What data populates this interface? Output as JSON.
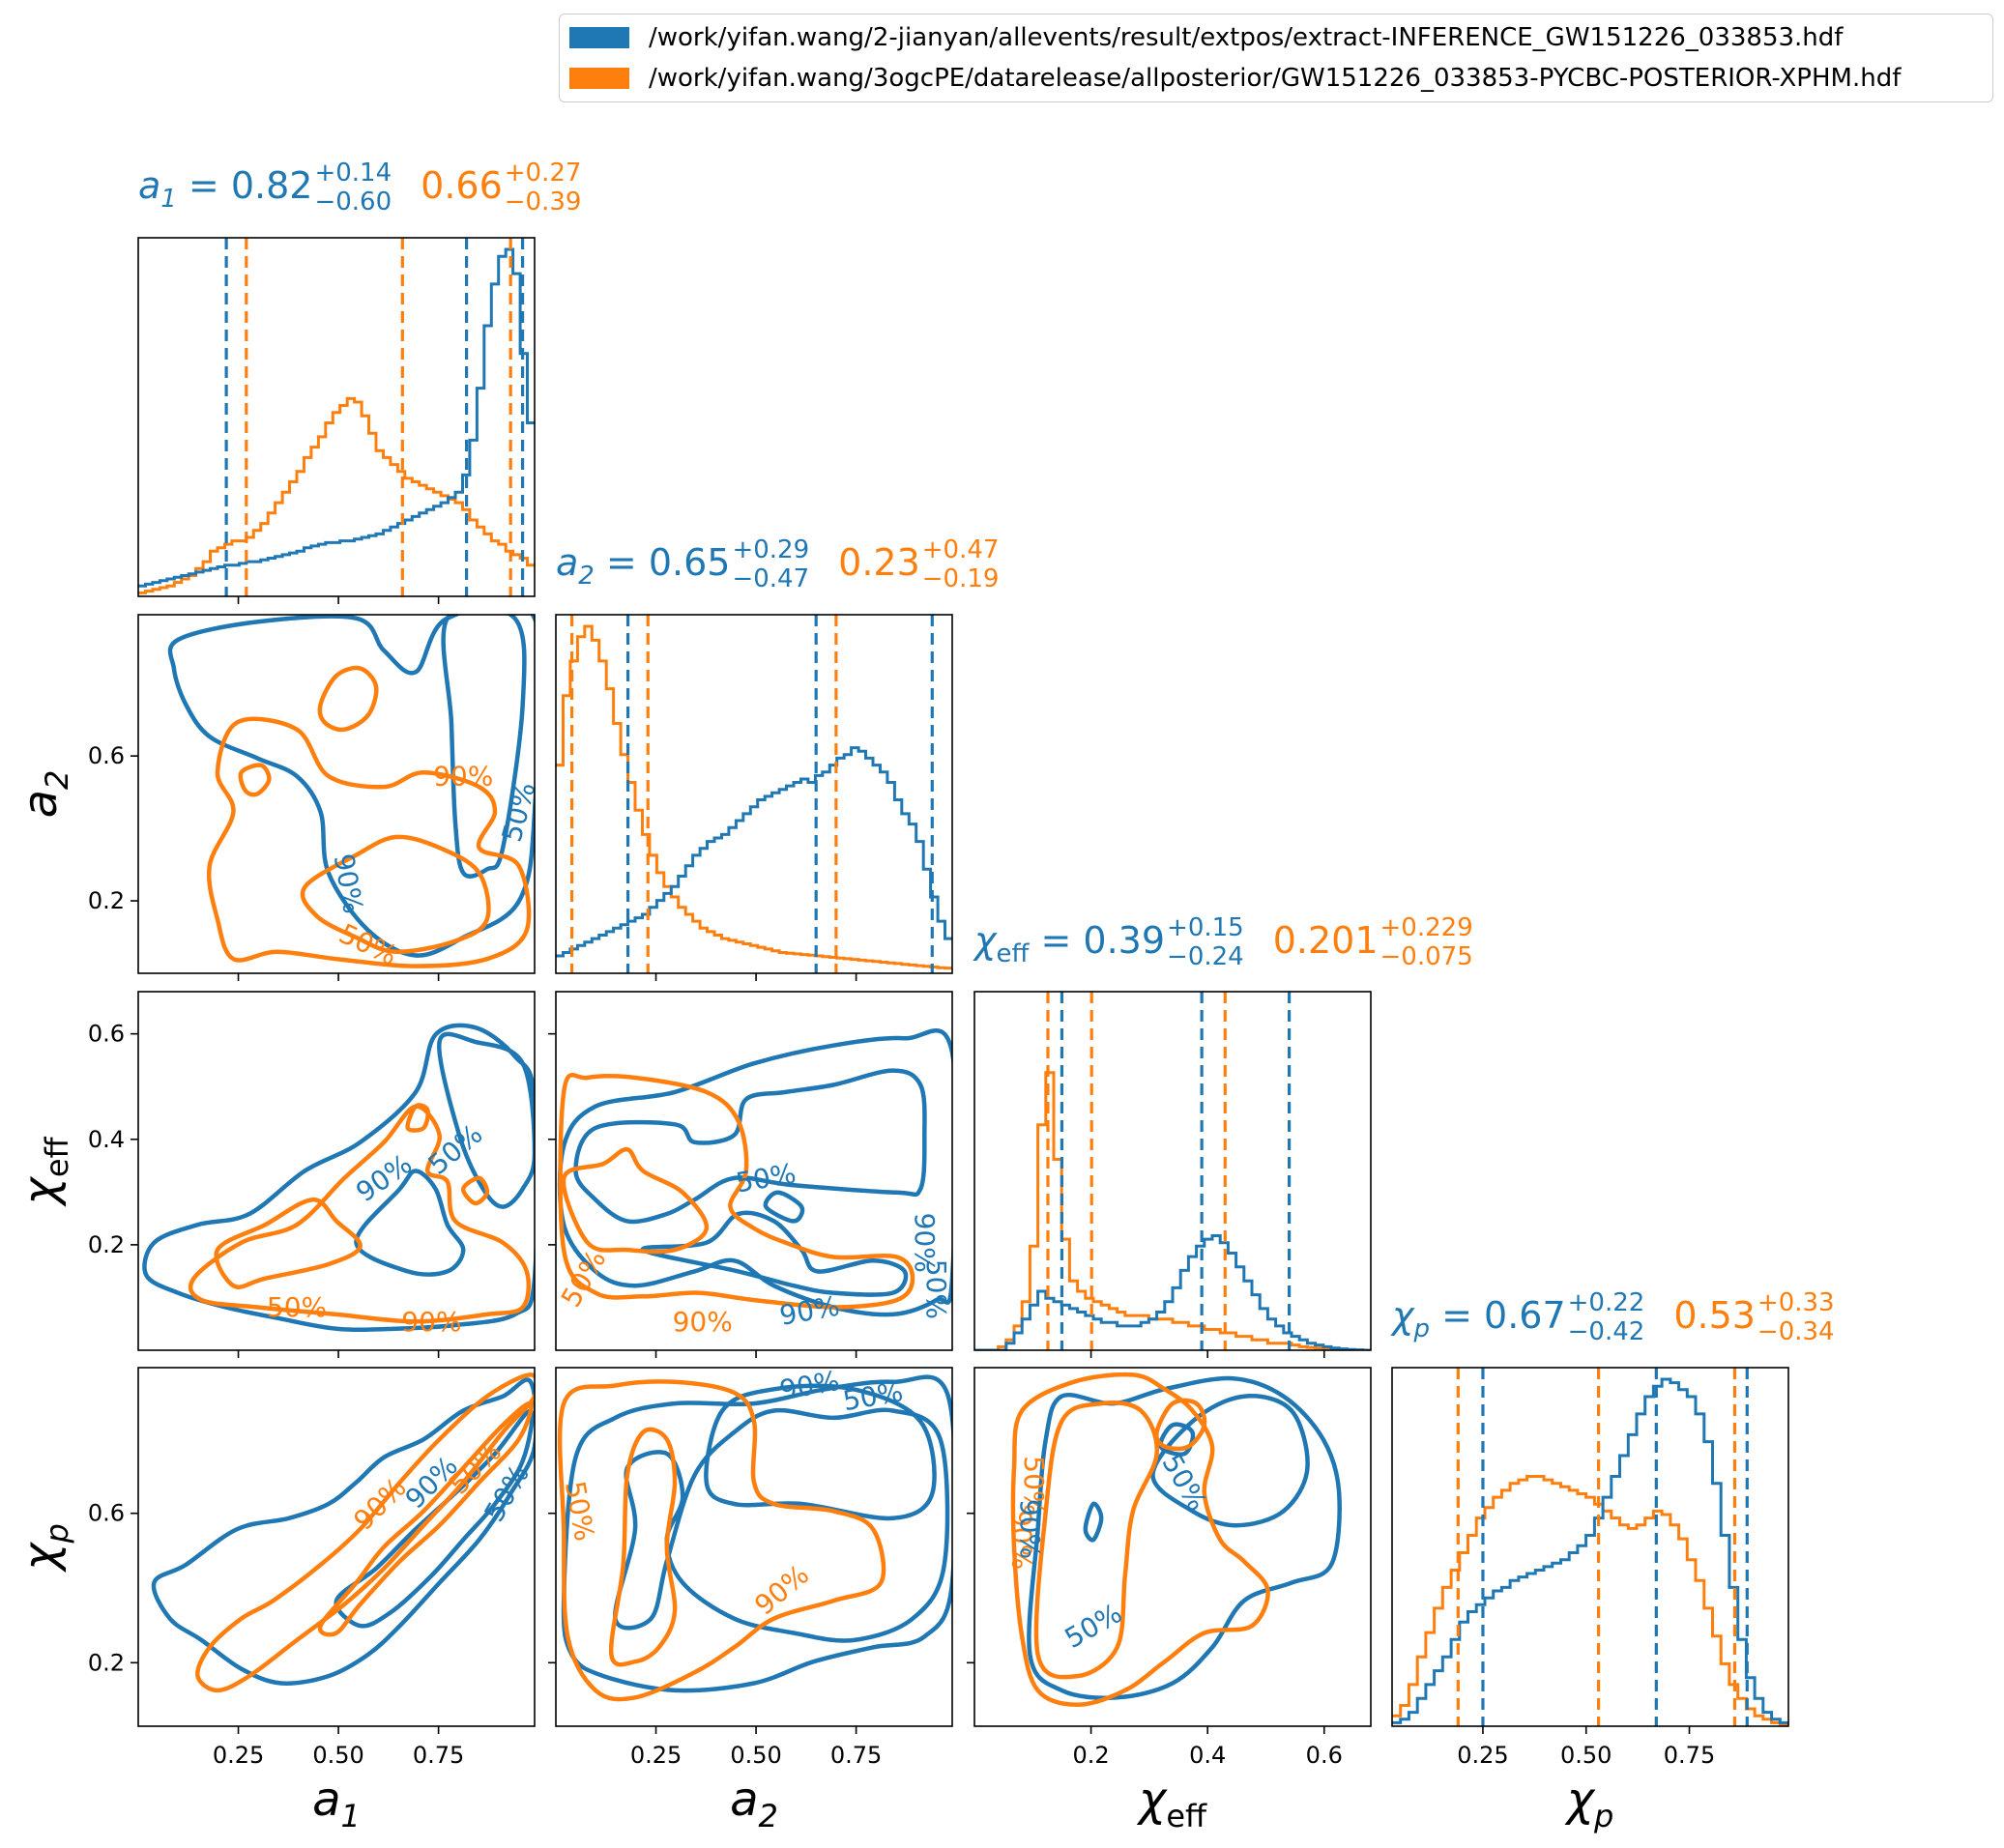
{
  "legend": {
    "entries": [
      {
        "label": "/work/yifan.wang/2-jianyan/allevents/result/extpos/extract-INFERENCE_GW151226_033853.hdf",
        "color": "#1f77b4"
      },
      {
        "label": "/work/yifan.wang/3ogcPE/datarelease/allposterior/GW151226_033853-PYCBC-POSTERIOR-XPHM.hdf",
        "color": "#ff7f0e"
      }
    ]
  },
  "colors": {
    "blue": "#1f77b4",
    "orange": "#ff7f0e"
  },
  "chart_data": {
    "type": "corner",
    "parameters": [
      {
        "key": "a1",
        "label": "a_1",
        "range": [
          0.0,
          0.99
        ]
      },
      {
        "key": "a2",
        "label": "a_2",
        "range": [
          0.0,
          0.99
        ]
      },
      {
        "key": "chieff",
        "label": "χ_eff",
        "range": [
          0.0,
          0.68
        ]
      },
      {
        "key": "chip",
        "label": "χ_p",
        "range": [
          0.03,
          0.99
        ]
      }
    ],
    "ticks": {
      "a1": [
        "0.25",
        "0.50",
        "0.75"
      ],
      "a2": [
        "0.25",
        "0.50",
        "0.75"
      ],
      "a2_y": [
        "0.2",
        "0.6"
      ],
      "chieff": [
        "0.2",
        "0.4",
        "0.6"
      ],
      "chip": [
        "0.2",
        "0.6"
      ],
      "chip_x": [
        "0.25",
        "0.50",
        "0.75"
      ]
    },
    "titles": [
      {
        "param": "a1",
        "name": "a",
        "sub": "1",
        "blue": {
          "median": "0.82",
          "plus": "+0.14",
          "minus": "−0.60"
        },
        "orange": {
          "median": "0.66",
          "plus": "+0.27",
          "minus": "−0.39"
        }
      },
      {
        "param": "a2",
        "name": "a",
        "sub": "2",
        "blue": {
          "median": "0.65",
          "plus": "+0.29",
          "minus": "−0.47"
        },
        "orange": {
          "median": "0.23",
          "plus": "+0.47",
          "minus": "−0.19"
        }
      },
      {
        "param": "chieff",
        "name": "χ",
        "sub": "eff",
        "blue": {
          "median": "0.39",
          "plus": "+0.15",
          "minus": "−0.24"
        },
        "orange": {
          "median": "0.201",
          "plus": "+0.229",
          "minus": "−0.075"
        }
      },
      {
        "param": "chip",
        "name": "χ",
        "sub": "p",
        "blue": {
          "median": "0.67",
          "plus": "+0.22",
          "minus": "−0.42"
        },
        "orange": {
          "median": "0.53",
          "plus": "+0.33",
          "minus": "−0.34"
        }
      }
    ],
    "quantiles": {
      "a1": {
        "blue": [
          0.22,
          0.82,
          0.96
        ],
        "orange": [
          0.27,
          0.66,
          0.93
        ]
      },
      "a2": {
        "blue": [
          0.18,
          0.65,
          0.94
        ],
        "orange": [
          0.04,
          0.23,
          0.7
        ]
      },
      "chieff": {
        "blue": [
          0.15,
          0.39,
          0.54
        ],
        "orange": [
          0.126,
          0.201,
          0.43
        ]
      },
      "chip": {
        "blue": [
          0.25,
          0.67,
          0.89
        ],
        "orange": [
          0.19,
          0.53,
          0.86
        ]
      }
    },
    "histograms": {
      "a1": {
        "bins": [
          0.0,
          0.99
        ],
        "blue": [
          0.03,
          0.035,
          0.04,
          0.045,
          0.05,
          0.055,
          0.06,
          0.065,
          0.07,
          0.075,
          0.08,
          0.085,
          0.09,
          0.09,
          0.095,
          0.1,
          0.1,
          0.105,
          0.11,
          0.115,
          0.12,
          0.125,
          0.13,
          0.14,
          0.145,
          0.15,
          0.155,
          0.155,
          0.16,
          0.16,
          0.165,
          0.17,
          0.175,
          0.18,
          0.19,
          0.2,
          0.21,
          0.22,
          0.23,
          0.24,
          0.25,
          0.26,
          0.27,
          0.285,
          0.3,
          0.35,
          0.45,
          0.6,
          0.78,
          0.9,
          0.98,
          1.0,
          0.93,
          0.7,
          0.5
        ],
        "orange": [
          0.01,
          0.015,
          0.02,
          0.025,
          0.03,
          0.04,
          0.05,
          0.06,
          0.08,
          0.1,
          0.13,
          0.14,
          0.15,
          0.16,
          0.16,
          0.17,
          0.19,
          0.21,
          0.24,
          0.27,
          0.3,
          0.33,
          0.36,
          0.4,
          0.43,
          0.46,
          0.5,
          0.53,
          0.55,
          0.57,
          0.56,
          0.52,
          0.47,
          0.42,
          0.4,
          0.38,
          0.36,
          0.34,
          0.33,
          0.32,
          0.31,
          0.3,
          0.29,
          0.28,
          0.27,
          0.25,
          0.22,
          0.2,
          0.18,
          0.16,
          0.15,
          0.13,
          0.12,
          0.11,
          0.09
        ]
      },
      "a2": {
        "bins": [
          0.0,
          0.99
        ],
        "blue": [
          0.05,
          0.06,
          0.07,
          0.08,
          0.09,
          0.1,
          0.11,
          0.12,
          0.13,
          0.14,
          0.15,
          0.16,
          0.17,
          0.19,
          0.21,
          0.23,
          0.25,
          0.28,
          0.31,
          0.34,
          0.36,
          0.38,
          0.39,
          0.4,
          0.42,
          0.44,
          0.46,
          0.48,
          0.5,
          0.51,
          0.52,
          0.53,
          0.54,
          0.55,
          0.56,
          0.55,
          0.57,
          0.58,
          0.6,
          0.62,
          0.63,
          0.65,
          0.64,
          0.62,
          0.6,
          0.58,
          0.55,
          0.5,
          0.46,
          0.43,
          0.38,
          0.3,
          0.22,
          0.15,
          0.1
        ],
        "orange": [
          0.6,
          0.8,
          0.9,
          0.97,
          1.0,
          0.96,
          0.9,
          0.82,
          0.72,
          0.63,
          0.55,
          0.47,
          0.4,
          0.34,
          0.29,
          0.25,
          0.22,
          0.19,
          0.17,
          0.15,
          0.13,
          0.12,
          0.11,
          0.1,
          0.095,
          0.09,
          0.085,
          0.08,
          0.075,
          0.07,
          0.065,
          0.06,
          0.058,
          0.056,
          0.054,
          0.052,
          0.05,
          0.048,
          0.046,
          0.044,
          0.042,
          0.04,
          0.038,
          0.036,
          0.034,
          0.032,
          0.03,
          0.028,
          0.026,
          0.024,
          0.022,
          0.02,
          0.018,
          0.016,
          0.015
        ]
      },
      "chieff": {
        "bins": [
          0.0,
          0.68
        ],
        "blue": [
          0.0,
          0.0,
          0.0,
          0.0,
          0.02,
          0.05,
          0.09,
          0.13,
          0.17,
          0.15,
          0.14,
          0.13,
          0.12,
          0.11,
          0.1,
          0.09,
          0.08,
          0.08,
          0.07,
          0.07,
          0.07,
          0.08,
          0.09,
          0.11,
          0.14,
          0.18,
          0.23,
          0.27,
          0.3,
          0.32,
          0.33,
          0.31,
          0.28,
          0.24,
          0.2,
          0.16,
          0.12,
          0.09,
          0.07,
          0.05,
          0.04,
          0.03,
          0.02,
          0.015,
          0.01,
          0.006,
          0.004,
          0.002,
          0.001,
          0.0
        ],
        "orange": [
          0.0,
          0.0,
          0.0,
          0.01,
          0.03,
          0.07,
          0.14,
          0.3,
          0.65,
          0.8,
          0.55,
          0.32,
          0.2,
          0.17,
          0.15,
          0.14,
          0.13,
          0.12,
          0.11,
          0.1,
          0.1,
          0.1,
          0.09,
          0.09,
          0.09,
          0.08,
          0.08,
          0.07,
          0.07,
          0.06,
          0.06,
          0.05,
          0.05,
          0.04,
          0.04,
          0.03,
          0.03,
          0.02,
          0.02,
          0.02,
          0.015,
          0.01,
          0.008,
          0.006,
          0.004,
          0.002,
          0.001,
          0.0,
          0.0,
          0.0
        ]
      },
      "chip": {
        "bins": [
          0.03,
          0.99
        ],
        "blue": [
          0.01,
          0.02,
          0.04,
          0.08,
          0.12,
          0.16,
          0.2,
          0.25,
          0.3,
          0.33,
          0.35,
          0.37,
          0.39,
          0.4,
          0.42,
          0.43,
          0.44,
          0.45,
          0.46,
          0.47,
          0.48,
          0.5,
          0.52,
          0.55,
          0.6,
          0.66,
          0.72,
          0.78,
          0.84,
          0.9,
          0.95,
          0.98,
          1.0,
          0.99,
          0.97,
          0.95,
          0.9,
          0.82,
          0.7,
          0.55,
          0.4,
          0.25,
          0.14,
          0.08,
          0.04,
          0.02,
          0.01
        ],
        "orange": [
          0.03,
          0.06,
          0.12,
          0.2,
          0.27,
          0.34,
          0.4,
          0.45,
          0.5,
          0.55,
          0.6,
          0.63,
          0.66,
          0.68,
          0.7,
          0.71,
          0.72,
          0.72,
          0.71,
          0.7,
          0.69,
          0.68,
          0.67,
          0.66,
          0.64,
          0.62,
          0.6,
          0.58,
          0.57,
          0.58,
          0.6,
          0.62,
          0.61,
          0.58,
          0.54,
          0.48,
          0.42,
          0.34,
          0.26,
          0.18,
          0.12,
          0.08,
          0.05,
          0.03,
          0.02,
          0.01,
          0.005
        ]
      }
    },
    "contour_labels": [
      {
        "panel": "a2-a1",
        "color": "orange",
        "text": "90%",
        "at": [
          0.82,
          0.55
        ]
      },
      {
        "panel": "a2-a1",
        "color": "blue",
        "text": "50%",
        "at": [
          0.96,
          0.45
        ],
        "rot": -75
      },
      {
        "panel": "a2-a1",
        "color": "blue",
        "text": "90%",
        "at": [
          0.53,
          0.25
        ],
        "rot": 80
      },
      {
        "panel": "a2-a1",
        "color": "orange",
        "text": "50%",
        "at": [
          0.58,
          0.08
        ],
        "rot": 25
      },
      {
        "panel": "chieff-a1",
        "color": "blue",
        "text": "90%",
        "at": [
          0.62,
          0.48
        ],
        "rot": -35
      },
      {
        "panel": "chieff-a1",
        "color": "blue",
        "text": "50%",
        "at": [
          0.8,
          0.56
        ],
        "rot": -40
      },
      {
        "panel": "chieff-a1",
        "color": "orange",
        "text": "50%",
        "at": [
          0.4,
          0.12
        ]
      },
      {
        "panel": "chieff-a1",
        "color": "orange",
        "text": "90%",
        "at": [
          0.74,
          0.08
        ]
      },
      {
        "panel": "chieff-a2",
        "color": "blue",
        "text": "50%",
        "at": [
          0.53,
          0.48
        ],
        "rot": -10
      },
      {
        "panel": "chieff-a2",
        "color": "blue",
        "text": "90%",
        "at": [
          0.93,
          0.3
        ],
        "rot": 90
      },
      {
        "panel": "chieff-a2",
        "color": "blue",
        "text": "50%",
        "at": [
          0.96,
          0.17
        ],
        "rot": 90
      },
      {
        "panel": "chieff-a2",
        "color": "orange",
        "text": "50%",
        "at": [
          0.07,
          0.2
        ],
        "rot": -60
      },
      {
        "panel": "chieff-a2",
        "color": "orange",
        "text": "90%",
        "at": [
          0.37,
          0.08
        ]
      },
      {
        "panel": "chieff-a2",
        "color": "blue",
        "text": "90%",
        "at": [
          0.64,
          0.11
        ],
        "rot": -10
      },
      {
        "panel": "chip-a1",
        "color": "orange",
        "text": "90%",
        "at": [
          0.61,
          0.62
        ],
        "rot": -45
      },
      {
        "panel": "chip-a1",
        "color": "blue",
        "text": "90%",
        "at": [
          0.74,
          0.68
        ],
        "rot": -45
      },
      {
        "panel": "chip-a1",
        "color": "orange",
        "text": "50%",
        "at": [
          0.85,
          0.72
        ],
        "rot": -45
      },
      {
        "panel": "chip-a1",
        "color": "blue",
        "text": "50%",
        "at": [
          0.93,
          0.65
        ],
        "rot": -60
      },
      {
        "panel": "chip-a2",
        "color": "blue",
        "text": "90%",
        "at": [
          0.64,
          0.95
        ],
        "rot": -10
      },
      {
        "panel": "chip-a2",
        "color": "blue",
        "text": "50%",
        "at": [
          0.8,
          0.92
        ],
        "rot": -10
      },
      {
        "panel": "chip-a2",
        "color": "orange",
        "text": "50%",
        "at": [
          0.06,
          0.6
        ],
        "rot": 80
      },
      {
        "panel": "chip-a2",
        "color": "orange",
        "text": "90%",
        "at": [
          0.57,
          0.38
        ],
        "rot": -40
      },
      {
        "panel": "chip-chieff",
        "color": "blue",
        "text": "50%",
        "at": [
          0.53,
          0.68
        ],
        "rot": 60
      },
      {
        "panel": "chip-chieff",
        "color": "orange",
        "text": "50%",
        "at": [
          0.15,
          0.67
        ],
        "rot": 90
      },
      {
        "panel": "chip-chieff",
        "color": "orange",
        "text": "90%",
        "at": [
          0.12,
          0.52
        ],
        "rot": 90
      },
      {
        "panel": "chip-chieff",
        "color": "blue",
        "text": "90%",
        "at": [
          0.14,
          0.55
        ],
        "rot": 90
      },
      {
        "panel": "chip-chieff",
        "color": "blue",
        "text": "50%",
        "at": [
          0.3,
          0.28
        ],
        "rot": -30
      }
    ]
  }
}
